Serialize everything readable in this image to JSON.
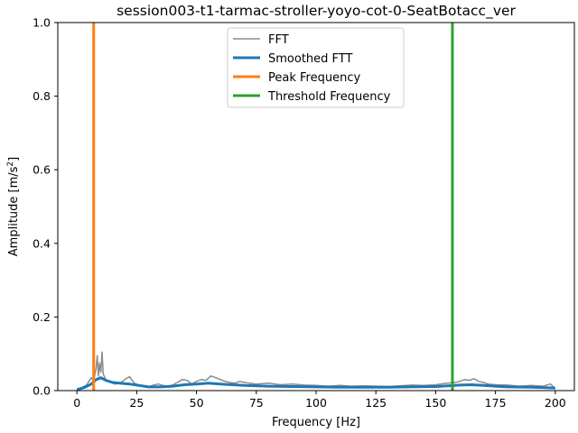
{
  "chart_data": {
    "type": "line",
    "title": "session003-t1-tarmac-stroller-yoyo-cot-0-SeatBotacc_ver",
    "xlabel": "Frequency [Hz]",
    "ylabel_main": "Amplitude [m/s",
    "ylabel_sup": "2",
    "ylabel_end": "]",
    "xlim": [
      -8,
      208
    ],
    "ylim": [
      0,
      1.0
    ],
    "xticks": [
      0,
      25,
      50,
      75,
      100,
      125,
      150,
      175,
      200
    ],
    "yticks": [
      0.0,
      0.2,
      0.4,
      0.6,
      0.8,
      1.0
    ],
    "xtick_labels": [
      "0",
      "25",
      "50",
      "75",
      "100",
      "125",
      "150",
      "175",
      "200"
    ],
    "ytick_labels": [
      "0.0",
      "0.2",
      "0.4",
      "0.6",
      "0.8",
      "1.0"
    ],
    "legend_position": "top-center",
    "series": [
      {
        "name": "FFT",
        "color": "#8c8c8c",
        "x": [
          0,
          2,
          4,
          5,
          6,
          7,
          8,
          8.5,
          9,
          9.5,
          10,
          10.5,
          11,
          12,
          14,
          16,
          18,
          20,
          22,
          24,
          26,
          28,
          30,
          32,
          34,
          36,
          38,
          40,
          42,
          44,
          46,
          48,
          50,
          52,
          54,
          56,
          58,
          60,
          62,
          64,
          66,
          68,
          70,
          75,
          80,
          85,
          90,
          95,
          100,
          105,
          110,
          115,
          120,
          125,
          130,
          135,
          140,
          145,
          150,
          155,
          158,
          160,
          162,
          164,
          166,
          168,
          170,
          172,
          175,
          180,
          185,
          190,
          195,
          198,
          200
        ],
        "values": [
          0.002,
          0.008,
          0.015,
          0.025,
          0.035,
          0.028,
          0.06,
          0.095,
          0.04,
          0.075,
          0.05,
          0.105,
          0.045,
          0.03,
          0.022,
          0.018,
          0.02,
          0.03,
          0.038,
          0.02,
          0.015,
          0.012,
          0.01,
          0.015,
          0.018,
          0.014,
          0.012,
          0.015,
          0.022,
          0.03,
          0.028,
          0.018,
          0.025,
          0.03,
          0.028,
          0.04,
          0.035,
          0.03,
          0.025,
          0.022,
          0.02,
          0.025,
          0.022,
          0.018,
          0.02,
          0.016,
          0.018,
          0.015,
          0.014,
          0.012,
          0.014,
          0.012,
          0.013,
          0.012,
          0.011,
          0.013,
          0.015,
          0.014,
          0.016,
          0.02,
          0.022,
          0.025,
          0.03,
          0.028,
          0.032,
          0.025,
          0.022,
          0.018,
          0.016,
          0.015,
          0.012,
          0.014,
          0.012,
          0.018,
          0.005
        ]
      },
      {
        "name": "Smoothed FTT",
        "color": "#1f77b4",
        "x": [
          0,
          3,
          6,
          8,
          10,
          12,
          15,
          18,
          22,
          26,
          30,
          35,
          40,
          45,
          50,
          55,
          60,
          65,
          70,
          80,
          90,
          100,
          110,
          120,
          130,
          140,
          150,
          155,
          160,
          165,
          170,
          175,
          180,
          190,
          200
        ],
        "values": [
          0.003,
          0.008,
          0.018,
          0.03,
          0.035,
          0.028,
          0.022,
          0.02,
          0.018,
          0.014,
          0.01,
          0.01,
          0.012,
          0.016,
          0.018,
          0.02,
          0.018,
          0.016,
          0.014,
          0.012,
          0.011,
          0.01,
          0.009,
          0.009,
          0.009,
          0.01,
          0.011,
          0.013,
          0.015,
          0.016,
          0.014,
          0.012,
          0.01,
          0.009,
          0.007
        ]
      },
      {
        "name": "Peak Frequency",
        "color": "#ff7f0e",
        "vline_x": 7
      },
      {
        "name": "Threshold Frequency",
        "color": "#2ca02c",
        "vline_x": 157
      }
    ]
  }
}
